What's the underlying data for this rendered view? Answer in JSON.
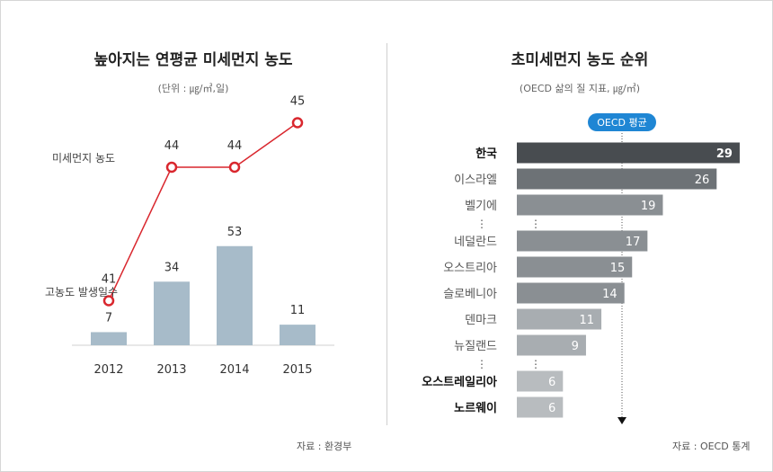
{
  "left": {
    "title": "높아지는 연평균 미세먼지 농도",
    "subtitle": "(단위 : ㎍/㎥,일)",
    "source": "자료 : 환경부"
  },
  "right": {
    "title": "초미세먼지 농도 순위",
    "subtitle": "(OECD 삶의 질 지표, ㎍/㎥)",
    "source": "자료 : OECD 통계",
    "oecd_label": "OECD 평균"
  },
  "chart_data": [
    {
      "type": "line",
      "series": [
        {
          "name": "미세먼지 농도",
          "values": [
            41,
            44,
            44,
            45
          ]
        }
      ],
      "categories": [
        "2012",
        "2013",
        "2014",
        "2015"
      ],
      "color": "#d9272e"
    },
    {
      "type": "bar",
      "series": [
        {
          "name": "고농도 발생일수",
          "values": [
            7,
            34,
            53,
            11
          ]
        }
      ],
      "categories": [
        "2012",
        "2013",
        "2014",
        "2015"
      ],
      "color": "#a7bbc9"
    },
    {
      "type": "bar",
      "orientation": "horizontal",
      "categories": [
        "한국",
        "이스라엘",
        "벨기에",
        "네덜란드",
        "오스트리아",
        "슬로베니아",
        "덴마크",
        "뉴질랜드",
        "오스트레일리아",
        "노르웨이"
      ],
      "values": [
        29,
        26,
        19,
        17,
        15,
        14,
        11,
        9,
        6,
        6
      ],
      "bold_categories": [
        "한국",
        "오스트레일리아",
        "노르웨이"
      ],
      "ellipsis": "⋮",
      "bar_colors": [
        "#484c50",
        "#6d7276",
        "#8a8f93",
        "#8a8f93",
        "#8a8f93",
        "#8a8f93",
        "#a8adb1",
        "#a8adb1",
        "#b8bcbf",
        "#b8bcbf"
      ],
      "reference_line": {
        "label": "OECD 평균",
        "color": "#1f86d4"
      }
    }
  ]
}
